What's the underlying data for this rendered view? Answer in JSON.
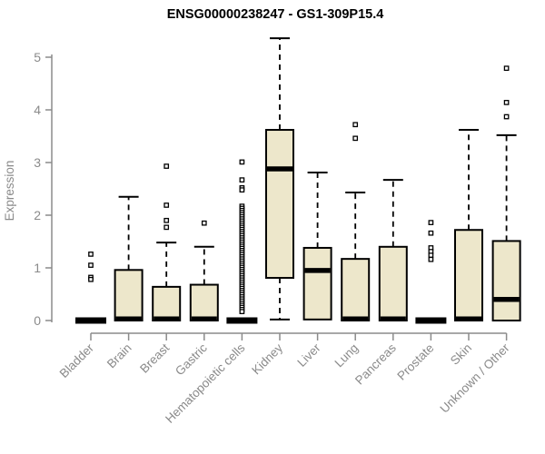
{
  "title": "ENSG00000238247 - GS1-309P15.4",
  "chart_data": {
    "type": "boxplot",
    "title": "ENSG00000238247 - GS1-309P15.4",
    "xlabel": "",
    "ylabel": "Expression",
    "ylim": [
      0,
      5.4
    ],
    "yticks": [
      0,
      1,
      2,
      3,
      4,
      5
    ],
    "grid": false,
    "legend": "none",
    "colors": {
      "box_fill": "#ede7cb",
      "box_stroke": "#000000",
      "median": "#000000",
      "whisker": "#000000",
      "outlier": "#000000",
      "axis": "#8b8b8b",
      "tick_label": "#8a8a8a",
      "title": "#000000"
    },
    "categories": [
      "Bladder",
      "Brain",
      "Breast",
      "Gastric",
      "Hematopoietic cells",
      "Kidney",
      "Liver",
      "Lung",
      "Pancreas",
      "Prostate",
      "Skin",
      "Unknown / Other"
    ],
    "boxes": [
      {
        "label": "Bladder",
        "collapsed": true,
        "lo": 0,
        "q1": 0,
        "median": 0,
        "q3": 0,
        "hi": 0,
        "outliers": [
          1.26,
          1.05,
          0.82,
          0.78
        ]
      },
      {
        "label": "Brain",
        "collapsed": false,
        "lo": 0,
        "q1": 0,
        "median": 0.03,
        "q3": 0.96,
        "hi": 2.35,
        "outliers": []
      },
      {
        "label": "Breast",
        "collapsed": false,
        "lo": 0,
        "q1": 0,
        "median": 0.03,
        "q3": 0.64,
        "hi": 1.48,
        "outliers": [
          2.93,
          2.19,
          1.9,
          1.77
        ]
      },
      {
        "label": "Gastric",
        "collapsed": false,
        "lo": 0,
        "q1": 0,
        "median": 0.03,
        "q3": 0.68,
        "hi": 1.4,
        "outliers": [
          1.85
        ]
      },
      {
        "label": "Hematopoietic cells",
        "collapsed": true,
        "lo": 0,
        "q1": 0,
        "median": 0,
        "q3": 0,
        "hi": 0,
        "outliers": [
          3.01,
          2.67,
          2.52,
          2.48
        ],
        "outlier_run": {
          "from": 0.17,
          "to": 2.17,
          "step": 0.04
        }
      },
      {
        "label": "Kidney",
        "collapsed": false,
        "lo": 0.02,
        "q1": 0.81,
        "median": 2.88,
        "q3": 3.62,
        "hi": 5.36,
        "outliers": []
      },
      {
        "label": "Liver",
        "collapsed": false,
        "lo": 0.02,
        "q1": 0.02,
        "median": 0.95,
        "q3": 1.38,
        "hi": 2.81,
        "outliers": []
      },
      {
        "label": "Lung",
        "collapsed": false,
        "lo": 0,
        "q1": 0,
        "median": 0.03,
        "q3": 1.17,
        "hi": 2.43,
        "outliers": [
          3.72,
          3.46
        ]
      },
      {
        "label": "Pancreas",
        "collapsed": false,
        "lo": 0,
        "q1": 0,
        "median": 0.03,
        "q3": 1.4,
        "hi": 2.67,
        "outliers": []
      },
      {
        "label": "Prostate",
        "collapsed": true,
        "lo": 0,
        "q1": 0,
        "median": 0,
        "q3": 0,
        "hi": 0,
        "outliers": [
          1.86,
          1.66,
          1.38,
          1.31,
          1.24,
          1.16
        ]
      },
      {
        "label": "Skin",
        "collapsed": false,
        "lo": 0,
        "q1": 0,
        "median": 0.03,
        "q3": 1.72,
        "hi": 3.62,
        "outliers": []
      },
      {
        "label": "Unknown / Other",
        "collapsed": false,
        "lo": 0,
        "q1": 0,
        "median": 0.4,
        "q3": 1.51,
        "hi": 3.52,
        "outliers": [
          4.79,
          4.14,
          3.87
        ]
      }
    ]
  }
}
